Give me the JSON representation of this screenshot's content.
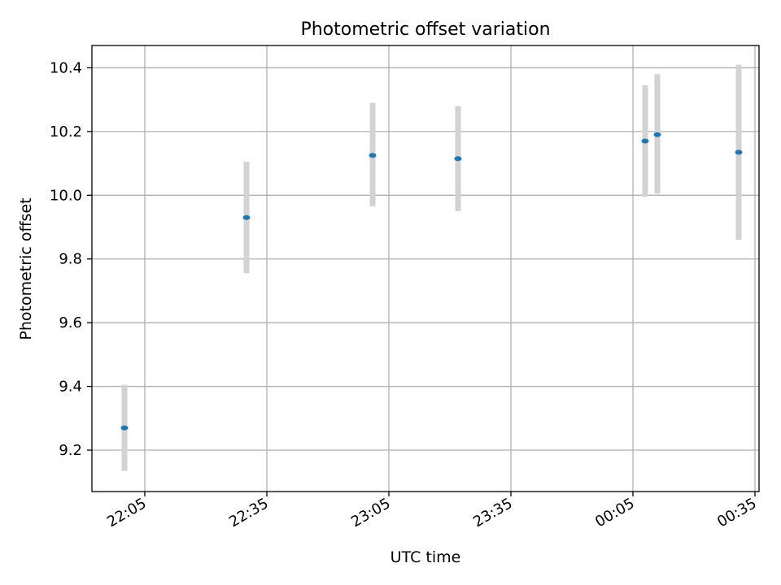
{
  "chart_data": {
    "type": "scatter",
    "title": "Photometric offset variation",
    "xlabel": "UTC time",
    "ylabel": "Photometric offset",
    "x_tick_labels": [
      "22:05",
      "22:35",
      "23:05",
      "23:35",
      "00:05",
      "00:35"
    ],
    "y_tick_labels": [
      "9.2",
      "9.4",
      "9.6",
      "9.8",
      "10.0",
      "10.2",
      "10.4"
    ],
    "grid": true,
    "xlim": [
      "21:52",
      "00:36"
    ],
    "ylim": [
      9.07,
      10.47
    ],
    "series": [
      {
        "points": [
          {
            "x": "22:00",
            "y": 9.27,
            "ymin": 9.135,
            "ymax": 9.405
          },
          {
            "x": "22:30",
            "y": 9.93,
            "ymin": 9.755,
            "ymax": 10.105
          },
          {
            "x": "23:01",
            "y": 10.125,
            "ymin": 9.965,
            "ymax": 10.29
          },
          {
            "x": "23:22",
            "y": 10.115,
            "ymin": 9.95,
            "ymax": 10.28
          },
          {
            "x": "00:08",
            "y": 10.17,
            "ymin": 9.995,
            "ymax": 10.345
          },
          {
            "x": "00:11",
            "y": 10.19,
            "ymin": 10.005,
            "ymax": 10.38
          },
          {
            "x": "00:31",
            "y": 10.135,
            "ymin": 9.86,
            "ymax": 10.41
          }
        ]
      }
    ],
    "colors": {
      "point": "#1f77b4",
      "errorbar": "#d3d3d3",
      "grid": "#b0b0b0",
      "axes": "#000000"
    }
  }
}
